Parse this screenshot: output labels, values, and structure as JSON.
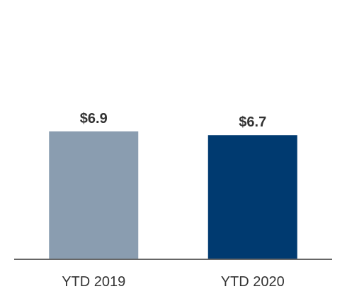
{
  "chart_data": {
    "type": "bar",
    "categories": [
      "YTD 2019",
      "YTD 2020"
    ],
    "values": [
      6.9,
      6.7
    ],
    "value_labels": [
      "$6.9",
      "$6.7"
    ],
    "colors": [
      "#8a9db0",
      "#003a70"
    ],
    "axis_color": "#666666",
    "ylim": [
      0,
      6.9
    ],
    "grid": false,
    "title": "",
    "xlabel": "",
    "ylabel": ""
  }
}
